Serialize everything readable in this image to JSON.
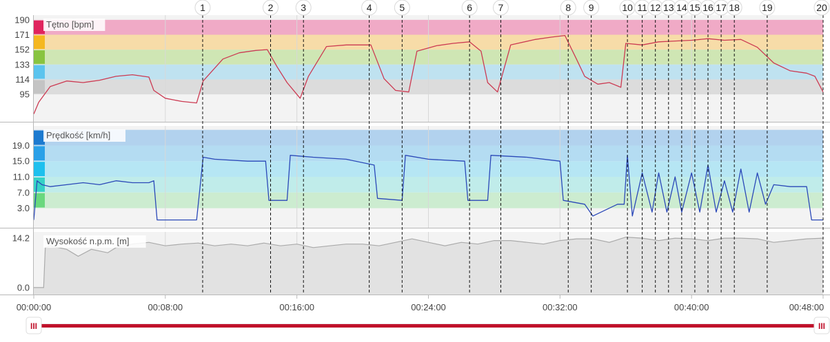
{
  "chart_data": [
    {
      "type": "line",
      "title": "Tętno [bpm]",
      "ylim": [
        60,
        196
      ],
      "yticks": [
        "190",
        "171",
        "152",
        "133",
        "114",
        "95"
      ],
      "ytick_values": [
        190,
        171,
        152,
        133,
        114,
        95
      ],
      "zones": [
        {
          "from": 171,
          "to": 190,
          "color": "#f0aac6",
          "key_color": "#e0245e"
        },
        {
          "from": 152,
          "to": 171,
          "color": "#f7dca8",
          "key_color": "#f5b820"
        },
        {
          "from": 133,
          "to": 152,
          "color": "#cfe6b4",
          "key_color": "#88c440"
        },
        {
          "from": 114,
          "to": 133,
          "color": "#bfe2f0",
          "key_color": "#5bc4ee"
        },
        {
          "from": 95,
          "to": 114,
          "color": "#dcdcdc",
          "key_color": "#c4c4c4"
        }
      ],
      "line_color": "#cc3a52",
      "series": [
        {
          "x": [
            0.0,
            0.3,
            1.0,
            2.0,
            3.0,
            4.0,
            5.0,
            6.0,
            7.0,
            7.3,
            8.0,
            9.0,
            9.9,
            10.3,
            11.5,
            12.5,
            13.5,
            14.2,
            14.8,
            15.4,
            16.2,
            16.7,
            17.8,
            19.0,
            20.5,
            21.3,
            22.0,
            22.8,
            23.3,
            24.5,
            25.5,
            26.5,
            27.2,
            27.6,
            28.2,
            29.0,
            30.5,
            31.5,
            32.3,
            33.0,
            33.5,
            34.3,
            35.0,
            35.7,
            36.0,
            37.0,
            38.0,
            39.0,
            40.0,
            41.0,
            42.0,
            43.0,
            44.0,
            45.0,
            46.0,
            47.0,
            47.5,
            48.0
          ],
          "y": [
            70,
            85,
            105,
            112,
            110,
            113,
            118,
            120,
            117,
            100,
            90,
            86,
            84,
            112,
            140,
            148,
            151,
            152,
            130,
            110,
            90,
            118,
            156,
            158,
            158,
            115,
            100,
            98,
            150,
            157,
            160,
            162,
            150,
            110,
            98,
            158,
            165,
            168,
            170,
            140,
            118,
            108,
            110,
            104,
            160,
            158,
            162,
            163,
            164,
            166,
            164,
            165,
            155,
            135,
            125,
            122,
            118,
            98
          ]
        }
      ]
    },
    {
      "type": "line",
      "title": "Prędkość [km/h]",
      "ylim": [
        -2,
        24
      ],
      "yticks": [
        "19.0",
        "15.0",
        "11.0",
        "7.0",
        "3.0"
      ],
      "ytick_values": [
        19,
        15,
        11,
        7,
        3
      ],
      "zones": [
        {
          "from": 19,
          "to": 23,
          "color": "#b2d2ee",
          "key_color": "#1c7ad0"
        },
        {
          "from": 15,
          "to": 19,
          "color": "#b4dcf2",
          "key_color": "#2aa0e8"
        },
        {
          "from": 11,
          "to": 15,
          "color": "#b6e6f4",
          "key_color": "#1ec0ee"
        },
        {
          "from": 7,
          "to": 11,
          "color": "#c0ecea",
          "key_color": "#36d2c6"
        },
        {
          "from": 3,
          "to": 7,
          "color": "#ccecd0",
          "key_color": "#6ad87e"
        }
      ],
      "line_color": "#2a48b8",
      "series": [
        {
          "x": [
            0.0,
            0.2,
            0.5,
            1.0,
            2.0,
            3.0,
            4.0,
            5.0,
            6.0,
            7.0,
            7.3,
            7.5,
            8.0,
            9.0,
            9.9,
            10.3,
            11.0,
            13.0,
            14.1,
            14.3,
            15.4,
            15.6,
            17.0,
            19.0,
            20.7,
            20.9,
            22.4,
            22.6,
            24.0,
            26.2,
            26.4,
            27.6,
            27.8,
            30.0,
            32.0,
            32.2,
            33.5,
            34.0,
            35.5,
            35.9,
            36.1,
            36.4,
            37.0,
            37.6,
            38.0,
            38.5,
            39.0,
            39.4,
            40.0,
            40.5,
            41.0,
            41.5,
            42.0,
            42.5,
            43.0,
            43.5,
            44.0,
            44.5,
            45.0,
            46.0,
            47.0,
            47.3,
            48.0
          ],
          "y": [
            0,
            10,
            9,
            8.5,
            9,
            9.5,
            9,
            10,
            9.5,
            9.5,
            10,
            0,
            0,
            0,
            0,
            16,
            15.5,
            15,
            15,
            5,
            5,
            16.5,
            16,
            15.5,
            14,
            5.5,
            5,
            16.5,
            15.5,
            15,
            5,
            5,
            16.5,
            16,
            15,
            5,
            4,
            1,
            4,
            4,
            16.5,
            1,
            12,
            2,
            12,
            2,
            11,
            2,
            12,
            2,
            14,
            2,
            10,
            2,
            13,
            2,
            12,
            4,
            9,
            8.5,
            8.5,
            0,
            0
          ]
        }
      ]
    },
    {
      "type": "area",
      "title": "Wysokość n.p.m. [m]",
      "ylim": [
        -2,
        16
      ],
      "yticks": [
        "14.2",
        "0.0"
      ],
      "ytick_values": [
        14.2,
        0
      ],
      "line_color": "#aaaaaa",
      "fill_color": "#e2e2e2",
      "series": [
        {
          "x": [
            0.0,
            0.6,
            0.7,
            1.0,
            2.0,
            2.7,
            3.5,
            4.5,
            5.0,
            6.0,
            7.0,
            8.0,
            9.0,
            10.0,
            11.0,
            12.0,
            13.0,
            14.0,
            15.0,
            16.0,
            17.0,
            18.0,
            19.0,
            20.0,
            21.0,
            22.0,
            23.0,
            24.0,
            25.0,
            26.0,
            27.0,
            28.0,
            29.0,
            30.0,
            31.0,
            32.0,
            33.0,
            34.0,
            35.0,
            36.0,
            37.0,
            38.0,
            39.0,
            40.0,
            41.0,
            42.0,
            43.0,
            44.0,
            45.0,
            46.0,
            47.0,
            48.0
          ],
          "y": [
            0,
            0,
            11.5,
            12,
            11,
            9,
            11,
            10,
            11.5,
            12.5,
            13,
            12,
            12.5,
            12.8,
            12,
            12.5,
            12,
            12.8,
            12,
            12.5,
            11.5,
            12,
            12.5,
            12.5,
            12,
            13,
            14,
            13,
            12,
            13,
            12.5,
            13.5,
            13.5,
            13,
            12.5,
            13.5,
            14,
            14,
            13,
            14.5,
            14.2,
            13.5,
            14.2,
            14,
            13.5,
            14.2,
            14.2,
            14,
            13,
            13.5,
            14,
            14.2
          ]
        }
      ]
    }
  ],
  "time_axis": {
    "min_minutes": 0,
    "max_minutes": 48,
    "ticks": [
      {
        "value": 0,
        "label": "00:00:00"
      },
      {
        "value": 8,
        "label": "00:08:00"
      },
      {
        "value": 16,
        "label": "00:16:00"
      },
      {
        "value": 24,
        "label": "00:24:00"
      },
      {
        "value": 32,
        "label": "00:32:00"
      },
      {
        "value": 40,
        "label": "00:40:00"
      },
      {
        "value": 48,
        "label": "00:48:00"
      }
    ]
  },
  "markers": [
    {
      "label": "1",
      "t": 10.27
    },
    {
      "label": "2",
      "t": 14.4
    },
    {
      "label": "3",
      "t": 16.4
    },
    {
      "label": "4",
      "t": 20.4
    },
    {
      "label": "5",
      "t": 22.4
    },
    {
      "label": "6",
      "t": 26.5
    },
    {
      "label": "7",
      "t": 28.4
    },
    {
      "label": "8",
      "t": 32.5
    },
    {
      "label": "9",
      "t": 33.9
    },
    {
      "label": "10",
      "t": 36.1
    },
    {
      "label": "11",
      "t": 37.0
    },
    {
      "label": "12",
      "t": 37.8
    },
    {
      "label": "13",
      "t": 38.6
    },
    {
      "label": "14",
      "t": 39.4
    },
    {
      "label": "15",
      "t": 40.2
    },
    {
      "label": "16",
      "t": 41.0
    },
    {
      "label": "17",
      "t": 41.8
    },
    {
      "label": "18",
      "t": 42.6
    },
    {
      "label": "19",
      "t": 44.6
    },
    {
      "label": "20",
      "t": 48.0
    }
  ],
  "range_slider": {
    "color": "#c0102a",
    "handle_glyph": "III",
    "start_fraction": 0,
    "end_fraction": 1
  }
}
